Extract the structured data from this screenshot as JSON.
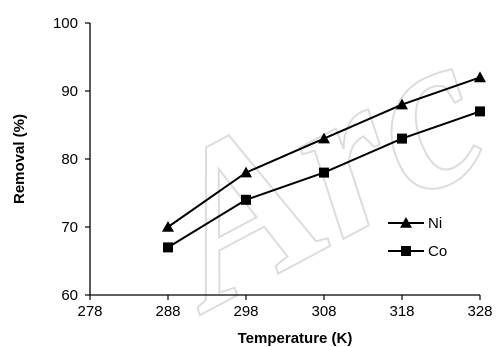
{
  "chart_data": {
    "type": "line",
    "title": "",
    "xlabel": "Temperature (K)",
    "ylabel": "Removal (%)",
    "xlim": [
      278,
      328
    ],
    "ylim": [
      60,
      100
    ],
    "xticks": [
      278,
      288,
      298,
      308,
      318,
      328
    ],
    "yticks": [
      60,
      70,
      80,
      90,
      100
    ],
    "grid": false,
    "legend_position": "right",
    "watermark": "Arc",
    "series": [
      {
        "name": "Ni",
        "marker": "triangle",
        "color": "#000000",
        "x": [
          288,
          298,
          308,
          318,
          328
        ],
        "y": [
          70,
          78,
          83,
          88,
          92
        ]
      },
      {
        "name": "Co",
        "marker": "square",
        "color": "#000000",
        "x": [
          288,
          298,
          308,
          318,
          328
        ],
        "y": [
          67,
          74,
          78,
          83,
          87
        ]
      }
    ]
  }
}
